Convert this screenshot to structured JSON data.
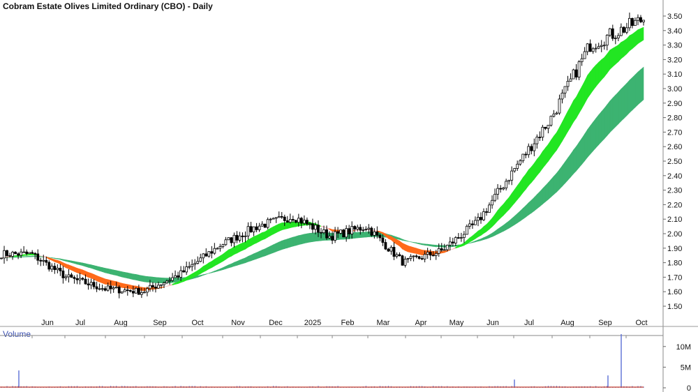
{
  "title": "Cobram Estate Olives Limited Ordinary (CBO) - Daily",
  "volume_label": "Volume",
  "chart_data": [
    {
      "type": "candlestick",
      "title": "Cobram Estate Olives Limited Ordinary (CBO) - Daily",
      "x_tick_labels": [
        "Jun",
        "Jul",
        "Aug",
        "Sep",
        "Oct",
        "Nov",
        "Dec",
        "2025",
        "Feb",
        "Mar",
        "Apr",
        "May",
        "Jun",
        "Jul",
        "Aug",
        "Sep",
        "Oct"
      ],
      "y_tick_labels": [
        "1.50",
        "1.60",
        "1.70",
        "1.80",
        "1.90",
        "2.00",
        "2.10",
        "2.20",
        "2.30",
        "2.40",
        "2.50",
        "2.60",
        "2.70",
        "2.80",
        "2.90",
        "3.00",
        "3.10",
        "3.20",
        "3.30",
        "3.40",
        "3.50"
      ],
      "ylim": [
        1.42,
        3.54
      ],
      "grid": false,
      "price_path_by_month": {
        "months": [
          "May",
          "Jun",
          "Jul",
          "Aug",
          "Sep",
          "Oct",
          "Nov",
          "Dec",
          "Jan 2025",
          "Feb",
          "Mar",
          "Apr",
          "May",
          "Jun",
          "Jul",
          "Aug",
          "Sep",
          "Oct"
        ],
        "close": [
          1.86,
          1.86,
          1.7,
          1.62,
          1.6,
          1.72,
          1.92,
          2.05,
          2.12,
          1.98,
          2.05,
          1.8,
          1.88,
          2.08,
          2.44,
          2.8,
          3.3,
          3.48
        ]
      },
      "bands": [
        {
          "role": "short-term moving average band",
          "color_up": "#22e622",
          "color_down": "#ff6a1a",
          "color_transition": "#ffb3b3"
        },
        {
          "role": "long-term moving average band",
          "color": "#3cb371"
        }
      ],
      "candle_color": "#000000"
    },
    {
      "type": "bar",
      "title": "Volume",
      "y_tick_labels": [
        "0",
        "5M",
        "10M"
      ],
      "ylim": [
        0,
        13000000
      ],
      "spikes": [
        {
          "month": "Jun",
          "value": 4200000
        },
        {
          "month": "Oct",
          "value": 13000000
        },
        {
          "month": "Sep",
          "value": 3000000
        },
        {
          "month": "Aug",
          "value": 2000000
        }
      ],
      "baseline_color": "#c0392b",
      "bar_color": "#5b6fd6"
    }
  ]
}
